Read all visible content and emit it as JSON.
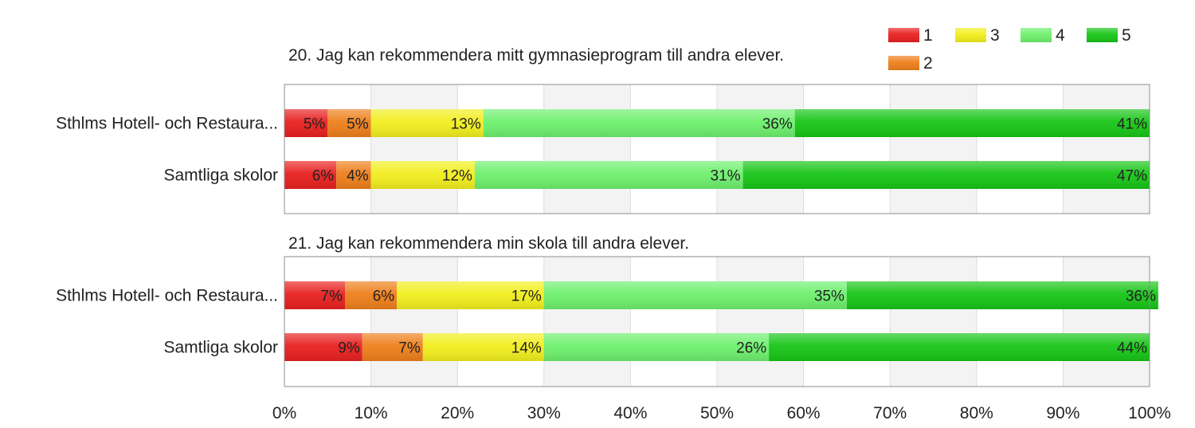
{
  "chart_data": {
    "type": "bar",
    "orientation": "horizontal",
    "stacked": true,
    "xlim": [
      0,
      100
    ],
    "x_ticks": [
      "0%",
      "10%",
      "20%",
      "30%",
      "40%",
      "50%",
      "60%",
      "70%",
      "80%",
      "90%",
      "100%"
    ],
    "grid": true,
    "legend": {
      "placement": "top-right",
      "items": [
        {
          "label": "1",
          "color": "#e8201f"
        },
        {
          "label": "3",
          "color": "#f2ee1e"
        },
        {
          "label": "4",
          "color": "#6df06d"
        },
        {
          "label": "5",
          "color": "#17c517"
        },
        {
          "label": "2",
          "color": "#ee7f1b"
        }
      ]
    },
    "series_colors": {
      "1": "#e8201f",
      "2": "#ee7f1b",
      "3": "#f2ee1e",
      "4": "#6df06d",
      "5": "#17c517"
    },
    "panels": [
      {
        "title": "20. Jag kan rekommendera mitt gymnasieprogram till andra elever.",
        "categories": [
          "Sthlms Hotell- och Restaura...",
          "Samtliga skolor"
        ],
        "series": [
          {
            "name": "1",
            "values": [
              5,
              6
            ],
            "labels": [
              "5%",
              "6%"
            ]
          },
          {
            "name": "2",
            "values": [
              5,
              4
            ],
            "labels": [
              "5%",
              "4%"
            ]
          },
          {
            "name": "3",
            "values": [
              13,
              12
            ],
            "labels": [
              "13%",
              "12%"
            ]
          },
          {
            "name": "4",
            "values": [
              36,
              31
            ],
            "labels": [
              "36%",
              "31%"
            ]
          },
          {
            "name": "5",
            "values": [
              41,
              47
            ],
            "labels": [
              "41%",
              "47%"
            ]
          }
        ]
      },
      {
        "title": "21. Jag kan rekommendera min skola till andra elever.",
        "categories": [
          "Sthlms Hotell- och Restaura...",
          "Samtliga skolor"
        ],
        "series": [
          {
            "name": "1",
            "values": [
              7,
              9
            ],
            "labels": [
              "7%",
              "9%"
            ]
          },
          {
            "name": "2",
            "values": [
              6,
              7
            ],
            "labels": [
              "6%",
              "7%"
            ]
          },
          {
            "name": "3",
            "values": [
              17,
              14
            ],
            "labels": [
              "17%",
              "14%"
            ]
          },
          {
            "name": "4",
            "values": [
              35,
              26
            ],
            "labels": [
              "35%",
              "26%"
            ]
          },
          {
            "name": "5",
            "values": [
              36,
              44
            ],
            "labels": [
              "36%",
              "44%"
            ]
          }
        ]
      }
    ]
  }
}
